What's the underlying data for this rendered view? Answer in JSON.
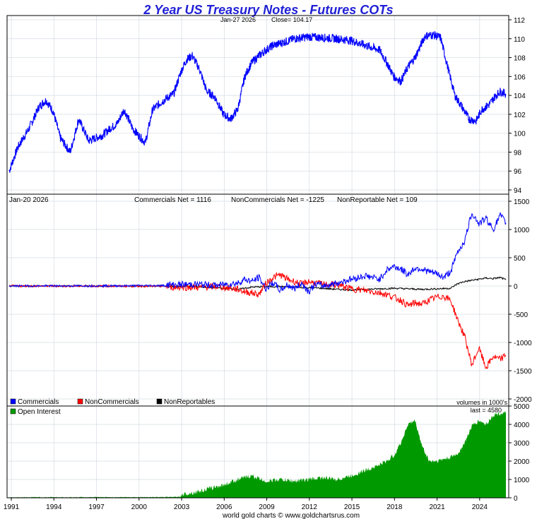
{
  "title": "2 Year US Treasury Notes - Futures COTs",
  "footer": "world gold charts © www.goldchartsrus.com",
  "colors": {
    "price": "#0000ff",
    "commercials": "#0000ff",
    "noncommercials": "#ff0000",
    "nonreportables": "#000000",
    "open_interest": "#009900",
    "grid": "#d4dbe2"
  },
  "panels": {
    "price": {
      "date": "Jan-27  2026",
      "close_label": "Close= 104.17"
    },
    "net": {
      "date": "Jan-20  2026",
      "commercials_net": "Commercials Net = 1116",
      "noncommercials_net": "NonCommercials Net = -1225",
      "nonreportable_net": "NonReportable Net = 109",
      "legend": [
        "Commercials",
        "NonCommercials",
        "NonReportables"
      ],
      "units_note": "volumes in 1000's"
    },
    "oi": {
      "legend": "Open Interest",
      "last": "last = 4580"
    }
  },
  "chart_data": [
    {
      "type": "line",
      "panel": "price",
      "ylim": [
        94,
        112
      ],
      "yticks": [
        "94",
        "96",
        "98",
        "100",
        "102",
        "104",
        "106",
        "108",
        "110",
        "112"
      ],
      "grid": true,
      "series": [
        {
          "x": [
            1990.9,
            1991.5,
            1992.3,
            1993.0,
            1993.5,
            1994.0,
            1994.5,
            1995.2,
            1995.8,
            1996.5,
            1997.0,
            1997.5,
            1998.0,
            1998.5,
            1999.0,
            1999.6,
            2000.0,
            2000.5,
            2001.0,
            2001.8,
            2002.5,
            2003.0,
            2003.4,
            2003.8,
            2004.3,
            2004.8,
            2005.4,
            2006.0,
            2006.5,
            2007.0,
            2007.5,
            2008.0,
            2008.5,
            2009.0,
            2009.5,
            2010.0,
            2011.0,
            2012.0,
            2013.0,
            2014.0,
            2015.0,
            2016.0,
            2017.0,
            2017.5,
            2018.0,
            2018.5,
            2019.0,
            2019.5,
            2020.2,
            2020.8,
            2021.3,
            2021.8,
            2022.3,
            2022.8,
            2023.3,
            2023.8,
            2024.2,
            2024.7,
            2025.2,
            2025.5,
            2025.9
          ],
          "values": [
            96.0,
            98.5,
            100.5,
            102.8,
            103.5,
            102.3,
            99.5,
            98.0,
            101.5,
            99.2,
            99.5,
            99.8,
            100.5,
            101.0,
            102.5,
            100.5,
            99.8,
            99.0,
            102.5,
            103.5,
            104.2,
            106.5,
            107.8,
            108.2,
            106.8,
            104.5,
            103.8,
            102.0,
            101.5,
            102.5,
            106.0,
            107.5,
            108.2,
            108.8,
            109.3,
            109.5,
            110.0,
            110.2,
            110.1,
            110.0,
            109.8,
            109.3,
            108.8,
            107.5,
            106.0,
            105.5,
            107.0,
            108.0,
            110.3,
            110.4,
            110.1,
            107.0,
            104.0,
            102.8,
            101.5,
            101.3,
            102.5,
            103.0,
            104.0,
            104.4,
            104.17
          ],
          "name": ""
        }
      ]
    },
    {
      "type": "line",
      "panel": "net",
      "ylim": [
        -2000,
        1500
      ],
      "yticks": [
        "1500",
        "1000",
        "500",
        "0",
        "-500",
        "-1000",
        "-1500",
        "-2000"
      ],
      "grid": true,
      "series": [
        {
          "name": "Commercials",
          "x": [
            1990.9,
            1995.0,
            1999.0,
            2001.0,
            2002.5,
            2004.0,
            2005.5,
            2006.5,
            2007.0,
            2007.5,
            2008.0,
            2008.5,
            2009.0,
            2009.5,
            2010.0,
            2010.5,
            2011.0,
            2011.5,
            2012.0,
            2012.5,
            2013.0,
            2014.0,
            2015.0,
            2016.0,
            2017.0,
            2017.5,
            2018.0,
            2018.5,
            2019.0,
            2019.5,
            2020.0,
            2020.5,
            2021.0,
            2021.5,
            2022.0,
            2022.5,
            2023.0,
            2023.5,
            2024.0,
            2024.5,
            2025.0,
            2025.5,
            2025.9
          ],
          "values": [
            0,
            5,
            10,
            25,
            20,
            30,
            10,
            40,
            50,
            120,
            80,
            150,
            -50,
            60,
            -80,
            20,
            -50,
            50,
            -100,
            40,
            0,
            50,
            120,
            180,
            120,
            280,
            350,
            300,
            200,
            320,
            300,
            250,
            220,
            150,
            250,
            600,
            800,
            1300,
            1100,
            1200,
            1000,
            1250,
            1116
          ]
        },
        {
          "name": "NonCommercials",
          "x": [
            1990.9,
            1995.0,
            1999.0,
            2001.0,
            2002.5,
            2004.0,
            2005.5,
            2006.5,
            2007.0,
            2007.5,
            2008.0,
            2008.5,
            2009.0,
            2009.5,
            2010.0,
            2010.5,
            2011.0,
            2011.5,
            2012.0,
            2012.5,
            2013.0,
            2014.0,
            2015.0,
            2016.0,
            2017.0,
            2017.5,
            2018.0,
            2018.5,
            2019.0,
            2019.5,
            2020.0,
            2020.5,
            2021.0,
            2021.5,
            2022.0,
            2022.5,
            2023.0,
            2023.5,
            2024.0,
            2024.5,
            2025.0,
            2025.5,
            2025.9
          ],
          "values": [
            0,
            -5,
            -10,
            -20,
            -20,
            -25,
            -10,
            -40,
            -60,
            -100,
            -120,
            -150,
            50,
            150,
            200,
            120,
            80,
            30,
            80,
            50,
            30,
            20,
            -50,
            -80,
            -120,
            -150,
            -200,
            -250,
            -350,
            -300,
            -320,
            -250,
            -200,
            -180,
            -250,
            -600,
            -900,
            -1400,
            -1100,
            -1450,
            -1250,
            -1300,
            -1225
          ]
        },
        {
          "name": "NonReportables",
          "x": [
            1990.9,
            1995.0,
            1999.0,
            2001.0,
            2002.5,
            2004.0,
            2005.5,
            2006.5,
            2007.0,
            2007.5,
            2008.0,
            2009.0,
            2010.0,
            2011.0,
            2012.0,
            2013.0,
            2014.0,
            2015.0,
            2016.0,
            2017.0,
            2018.0,
            2019.0,
            2020.0,
            2021.0,
            2022.0,
            2022.5,
            2023.0,
            2023.5,
            2024.0,
            2024.5,
            2025.0,
            2025.5,
            2025.9
          ],
          "values": [
            0,
            0,
            -5,
            -5,
            -5,
            -10,
            -30,
            -50,
            -60,
            -40,
            -20,
            -10,
            -10,
            -20,
            -30,
            -40,
            -60,
            -70,
            -60,
            -50,
            -40,
            -50,
            -60,
            -50,
            -40,
            40,
            80,
            100,
            120,
            140,
            130,
            150,
            109
          ]
        }
      ]
    },
    {
      "type": "area",
      "panel": "oi",
      "ylim": [
        0,
        5000
      ],
      "yticks": [
        "0",
        "1000",
        "2000",
        "3000",
        "4000",
        "5000"
      ],
      "grid": true,
      "series": [
        {
          "name": "Open Interest",
          "x": [
            1990.9,
            1993.0,
            1995.0,
            1997.0,
            1999.0,
            2000.0,
            2001.0,
            2002.0,
            2003.0,
            2004.0,
            2005.0,
            2006.0,
            2007.0,
            2007.5,
            2008.0,
            2009.0,
            2010.0,
            2011.0,
            2012.0,
            2013.0,
            2014.0,
            2015.0,
            2016.0,
            2017.0,
            2017.5,
            2018.0,
            2018.5,
            2019.0,
            2019.5,
            2020.0,
            2020.5,
            2021.0,
            2021.5,
            2022.0,
            2022.5,
            2023.0,
            2023.5,
            2024.0,
            2024.5,
            2025.0,
            2025.5,
            2025.9
          ],
          "values": [
            30,
            40,
            40,
            60,
            80,
            90,
            100,
            110,
            180,
            300,
            500,
            700,
            1000,
            1100,
            1200,
            900,
            1000,
            900,
            1000,
            1100,
            1000,
            1200,
            1500,
            1800,
            2000,
            2300,
            3000,
            4000,
            4200,
            2800,
            2000,
            2000,
            2100,
            2200,
            2400,
            3000,
            3900,
            4200,
            4000,
            4500,
            4600,
            4580
          ]
        }
      ]
    }
  ],
  "x_axis": {
    "labels": [
      "1991",
      "1994",
      "1997",
      "2000",
      "2003",
      "2006",
      "2009",
      "2012",
      "2015",
      "2018",
      "2021",
      "2024"
    ]
  }
}
